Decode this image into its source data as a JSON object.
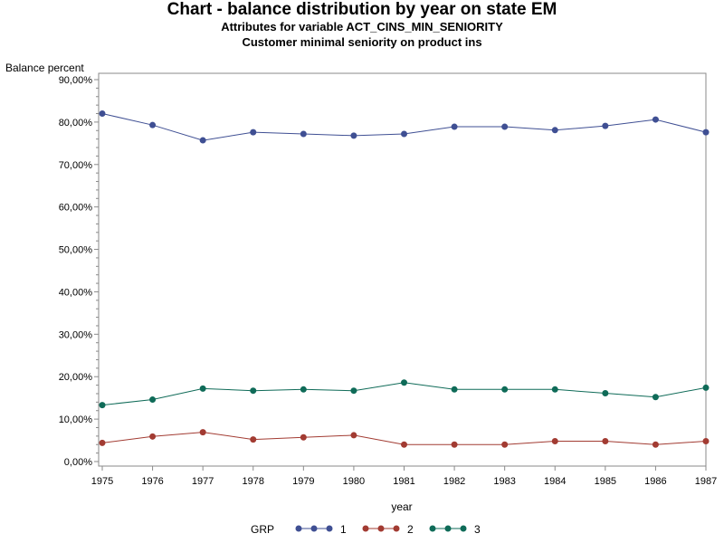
{
  "chart_data": {
    "type": "line",
    "title": "Chart - balance distribution by year on state EM",
    "subtitle": [
      "Attributes for variable ACT_CINS_MIN_SENIORITY",
      "Customer minimal seniority on product ins"
    ],
    "xlabel": "year",
    "ylabel": "Balance percent",
    "categories": [
      "1975",
      "1976",
      "1977",
      "1978",
      "1979",
      "1980",
      "1981",
      "1982",
      "1983",
      "1984",
      "1985",
      "1986",
      "1987"
    ],
    "yticks": [
      "0,00%",
      "10,00%",
      "20,00%",
      "30,00%",
      "40,00%",
      "50,00%",
      "60,00%",
      "70,00%",
      "80,00%",
      "90,00%"
    ],
    "ylim": [
      0,
      90
    ],
    "legend_title": "GRP",
    "legend_position": "bottom",
    "series": [
      {
        "name": "1",
        "color": "#3f4f93",
        "values": [
          82.0,
          79.3,
          75.7,
          77.6,
          77.2,
          76.8,
          77.2,
          78.9,
          78.9,
          78.1,
          79.1,
          80.6,
          77.6
        ]
      },
      {
        "name": "2",
        "color": "#a23b32",
        "values": [
          4.4,
          5.9,
          6.9,
          5.2,
          5.7,
          6.2,
          4.0,
          4.0,
          4.0,
          4.8,
          4.8,
          4.0,
          4.8
        ]
      },
      {
        "name": "3",
        "color": "#0f6b58",
        "values": [
          13.3,
          14.6,
          17.2,
          16.7,
          17.0,
          16.7,
          18.6,
          17.0,
          17.0,
          17.0,
          16.1,
          15.2,
          17.4
        ]
      }
    ]
  }
}
